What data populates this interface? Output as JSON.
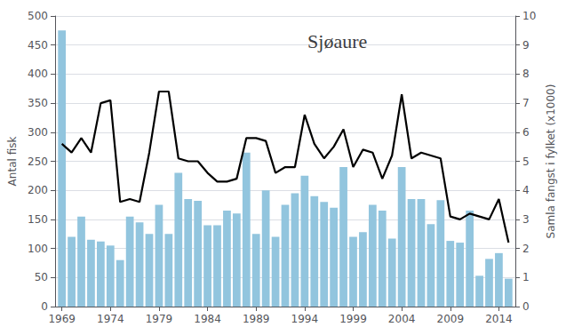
{
  "chart_data": {
    "type": "bar",
    "title": "Sjøaure",
    "ylabel": "Antal fisk",
    "y2label": "Samla fangst i fylket (x1000)",
    "x": [
      1969,
      1970,
      1971,
      1972,
      1973,
      1974,
      1975,
      1976,
      1977,
      1978,
      1979,
      1980,
      1981,
      1982,
      1983,
      1984,
      1985,
      1986,
      1987,
      1988,
      1989,
      1990,
      1991,
      1992,
      1993,
      1994,
      1995,
      1996,
      1997,
      1998,
      1999,
      2000,
      2001,
      2002,
      2003,
      2004,
      2005,
      2006,
      2007,
      2008,
      2009,
      2010,
      2011,
      2012,
      2013,
      2014,
      2015
    ],
    "series": [
      {
        "type": "bar",
        "color": "#92c5de",
        "values": [
          475,
          120,
          155,
          115,
          112,
          105,
          80,
          155,
          145,
          125,
          175,
          125,
          230,
          185,
          182,
          140,
          140,
          165,
          160,
          265,
          125,
          200,
          120,
          175,
          195,
          225,
          190,
          180,
          170,
          240,
          120,
          128,
          175,
          165,
          117,
          240,
          185,
          185,
          142,
          183,
          113,
          110,
          165,
          53,
          82,
          92,
          48
        ]
      },
      {
        "type": "line",
        "color": "#000000",
        "axis": "y2",
        "values": [
          5.6,
          5.3,
          5.8,
          5.3,
          7.0,
          7.1,
          3.6,
          3.7,
          3.6,
          5.3,
          7.4,
          7.4,
          5.1,
          5.0,
          5.0,
          4.6,
          4.3,
          4.3,
          4.4,
          5.8,
          5.8,
          5.7,
          4.6,
          4.8,
          4.8,
          6.6,
          5.6,
          5.1,
          5.5,
          6.1,
          4.8,
          5.4,
          5.3,
          4.4,
          5.2,
          7.3,
          5.1,
          5.3,
          5.2,
          5.1,
          3.1,
          3.0,
          3.2,
          3.1,
          3.0,
          3.7,
          2.2
        ]
      }
    ],
    "xlim": [
      1968.3,
      2015.7
    ],
    "xticks": [
      1969,
      1974,
      1979,
      1984,
      1989,
      1994,
      1999,
      2004,
      2009,
      2014
    ],
    "ylim": [
      0,
      500
    ],
    "yticks": [
      0,
      50,
      100,
      150,
      200,
      250,
      300,
      350,
      400,
      450,
      500
    ],
    "y2lim": [
      0,
      10
    ],
    "y2ticks": [
      0,
      1,
      2,
      3,
      4,
      5,
      6,
      7,
      8,
      9,
      10
    ],
    "grid": true
  }
}
